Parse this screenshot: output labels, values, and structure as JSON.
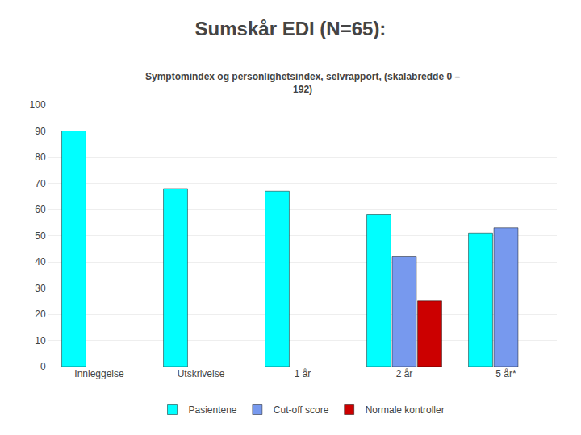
{
  "chart_data": {
    "type": "bar",
    "title": "Sumskår EDI (N=65):",
    "subtitle": "Symptomindex og personlighetsindex, selvrapport, (skalabredde 0 –\n192)",
    "categories": [
      "Innleggelse",
      "Utskrivelse",
      "1 år",
      "2 år",
      "5 år*"
    ],
    "series": [
      {
        "name": "Pasientene",
        "color": "#00FFFF",
        "values": [
          90,
          68,
          67,
          58,
          51
        ]
      },
      {
        "name": "Cut-off score",
        "color": "#7799EE",
        "values": [
          null,
          null,
          null,
          42,
          53
        ]
      },
      {
        "name": "Normale kontroller",
        "color": "#CC0000",
        "values": [
          null,
          null,
          null,
          25,
          null
        ]
      }
    ],
    "ylim": [
      0,
      100
    ],
    "yticks": [
      0,
      10,
      20,
      30,
      40,
      50,
      60,
      70,
      80,
      90,
      100
    ],
    "grid": true,
    "legend": "bottom"
  }
}
